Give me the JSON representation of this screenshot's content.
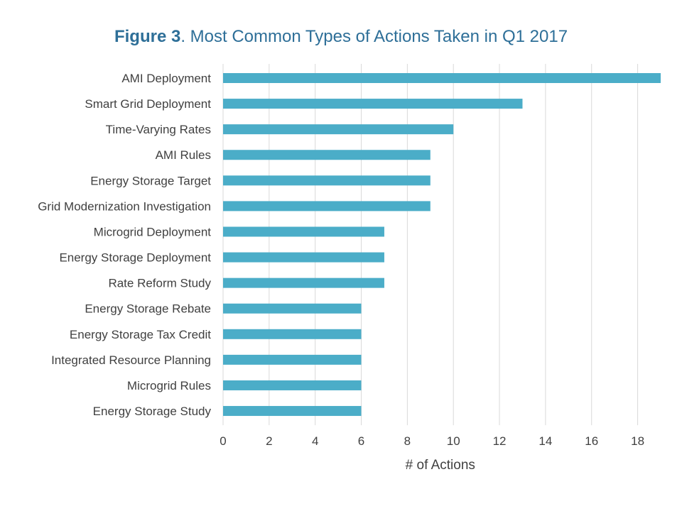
{
  "title": {
    "figure_num": "Figure 3",
    "text": ". Most Common Types of Actions Taken in Q1 2017"
  },
  "colors": {
    "bar": "#4badc8",
    "grid": "#d9d9d9",
    "title": "#2e6f98",
    "text": "#404040"
  },
  "chart_data": {
    "type": "bar",
    "orientation": "horizontal",
    "title": "Figure 3. Most Common Types of Actions Taken in Q1 2017",
    "categories": [
      "AMI Deployment",
      "Smart Grid Deployment",
      "Time-Varying Rates",
      "AMI Rules",
      "Energy Storage Target",
      "Grid Modernization Investigation",
      "Microgrid Deployment",
      "Energy Storage Deployment",
      "Rate Reform Study",
      "Energy Storage Rebate",
      "Energy Storage Tax Credit",
      "Integrated Resource Planning",
      "Microgrid Rules",
      "Energy Storage Study"
    ],
    "values": [
      19,
      13,
      10,
      9,
      9,
      9,
      7,
      7,
      7,
      6,
      6,
      6,
      6,
      6
    ],
    "xlabel": "# of Actions",
    "ylabel": "",
    "xlim": [
      0,
      19
    ],
    "xticks": [
      "0",
      "2",
      "4",
      "6",
      "8",
      "10",
      "12",
      "14",
      "16",
      "18"
    ],
    "grid": "vertical",
    "legend": "none"
  }
}
